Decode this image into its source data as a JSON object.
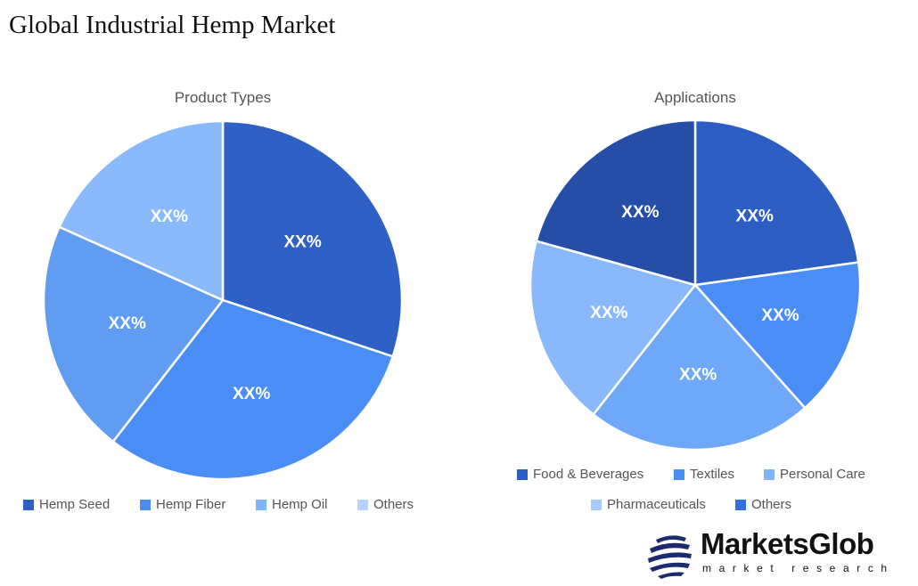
{
  "title": "Global Industrial Hemp Market",
  "chart_data": [
    {
      "type": "pie",
      "title": "Product Types",
      "legend": "bottom",
      "categories": [
        "Hemp Seed",
        "Hemp Fiber",
        "Hemp Oil",
        "Others"
      ],
      "values": [
        30.1,
        30.4,
        21.2,
        18.3
      ],
      "labels": [
        "XX%",
        "XX%",
        "XX%",
        "XX%"
      ],
      "colors": [
        "#2e60c6",
        "#4a8ef5",
        "#5f9cf2",
        "#8bbafc"
      ],
      "legend_colors": [
        "#2e5fc5",
        "#4a8ef5",
        "#80b4fb",
        "#b5d3fd"
      ]
    },
    {
      "type": "pie",
      "title": "Applications",
      "legend": "bottom",
      "categories": [
        "Food & Beverages",
        "Textiles",
        "Personal Care",
        "Pharmaceuticals",
        "Others"
      ],
      "values": [
        22.8,
        15.6,
        22.2,
        18.7,
        20.7
      ],
      "labels": [
        "XX%",
        "XX%",
        "XX%",
        "XX%",
        "XX%"
      ],
      "colors": [
        "#2d5ec4",
        "#4a8ef5",
        "#6fa8f8",
        "#8ab9fb",
        "#264ea6"
      ],
      "legend_colors": [
        "#2d5ec4",
        "#4a8ef5",
        "#80b4fb",
        "#a8cbfd",
        "#3070e0"
      ]
    }
  ],
  "logo": {
    "name": "MarketsGlob",
    "tagline": "market research"
  }
}
